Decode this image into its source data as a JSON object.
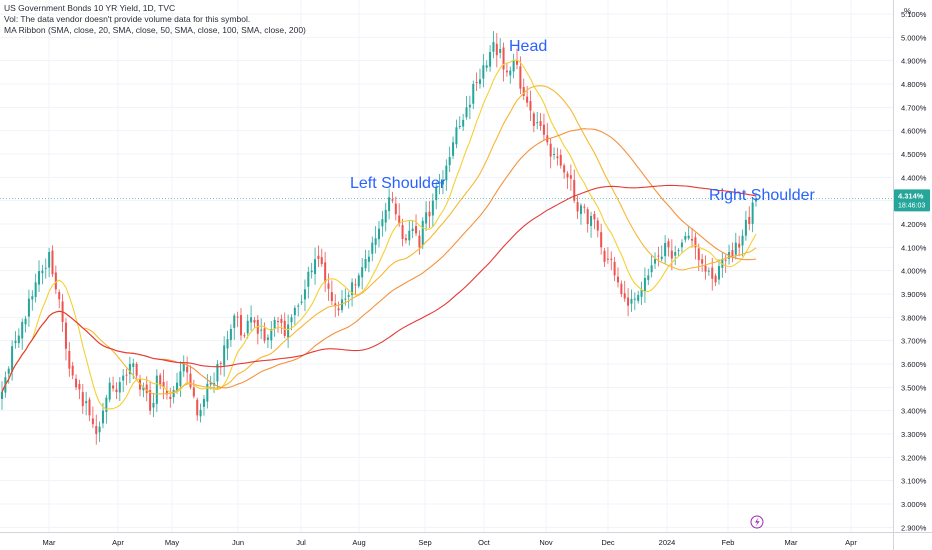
{
  "legend": {
    "title": "US Government Bonds 10 YR Yield, 1D, TVC",
    "vol_line": "Vol: The data vendor doesn't provide volume data for this symbol.",
    "ribbon_line": "MA Ribbon (SMA, close, 20, SMA, close, 50, SMA, close, 100, SMA, close, 200)"
  },
  "price_axis_unit": "%",
  "badge": {
    "price": "4.314%",
    "time": "18:46:03"
  },
  "colors": {
    "up": "#26a69a",
    "down": "#ef5350",
    "sma20": "#f5d033",
    "sma50": "#f7b733",
    "sma100": "#f7913b",
    "sma200": "#e53935",
    "annotation": "#2962ff"
  },
  "event_icon": "lightning-bolt-icon",
  "chart_data": {
    "type": "candlestick",
    "title": "US Government Bonds 10 YR Yield, 1D, TVC",
    "y_unit": "%",
    "ylim": [
      2.88,
      5.16
    ],
    "y_ticks": [
      "5.100%",
      "5.000%",
      "4.900%",
      "4.800%",
      "4.700%",
      "4.600%",
      "4.500%",
      "4.400%",
      "4.300%",
      "4.200%",
      "4.100%",
      "4.000%",
      "3.900%",
      "3.800%",
      "3.700%",
      "3.600%",
      "3.500%",
      "3.400%",
      "3.300%",
      "3.200%",
      "3.100%",
      "3.000%",
      "2.900%"
    ],
    "x_ticks": [
      "Mar",
      "Apr",
      "May",
      "Jun",
      "Jul",
      "Aug",
      "Sep",
      "Oct",
      "Nov",
      "Dec",
      "2024",
      "Feb",
      "Mar",
      "Apr"
    ],
    "grid": true,
    "annotations": [
      "Head",
      "Left Shoulder",
      "Right Shoulder"
    ],
    "close_anchors": [
      [
        3.48,
        3.58,
        3.7,
        3.78,
        3.88,
        3.95,
        4.0,
        4.08,
        3.92,
        3.78,
        3.58,
        3.5,
        3.42,
        3.38,
        3.3,
        3.4,
        3.52,
        3.48,
        3.55,
        3.6
      ],
      [
        3.55,
        3.5,
        3.4,
        3.55,
        3.5,
        3.45,
        3.52,
        3.6,
        3.5,
        3.38,
        3.45,
        3.52,
        3.6,
        3.68,
        3.75,
        3.8,
        3.72,
        3.8,
        3.73,
        3.7
      ],
      [
        3.75,
        3.78,
        3.72,
        3.8,
        3.85,
        3.92,
        4.0,
        4.05,
        3.95,
        3.87,
        3.83,
        3.88,
        3.95,
        3.98,
        4.05,
        4.12,
        4.18,
        4.26,
        4.3,
        4.2
      ],
      [
        4.13,
        4.18,
        4.1,
        4.25,
        4.3,
        4.38,
        4.45,
        4.55,
        4.62,
        4.7,
        4.8,
        4.82,
        4.88,
        4.98,
        4.95,
        4.85,
        4.9,
        4.78,
        4.72,
        4.62
      ],
      [
        4.62,
        4.55,
        4.5,
        4.45,
        4.4,
        4.3,
        4.28,
        4.2,
        4.22,
        4.1,
        4.05,
        3.98,
        3.9,
        3.85,
        3.88,
        3.92,
        3.98,
        4.05,
        4.06,
        4.1
      ],
      [
        4.08,
        4.12,
        4.15,
        4.1,
        4.03,
        4.0,
        3.95,
        4.05,
        4.08,
        4.12,
        4.15,
        4.2,
        4.31
      ]
    ],
    "series": [
      {
        "name": "SMA 20"
      },
      {
        "name": "SMA 50"
      },
      {
        "name": "SMA 100"
      },
      {
        "name": "SMA 200"
      }
    ]
  }
}
